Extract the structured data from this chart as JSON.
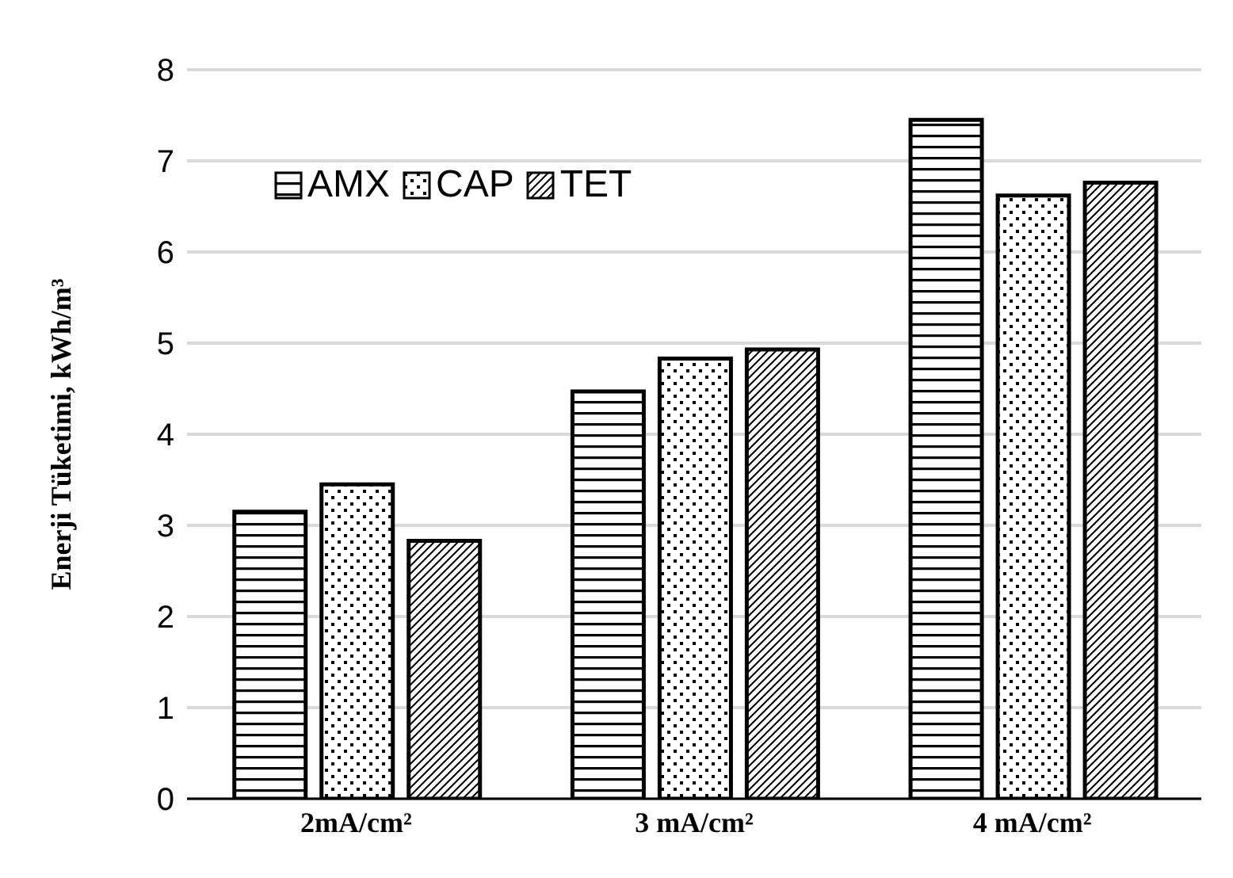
{
  "chart_data": {
    "type": "bar",
    "ylabel": "Enerji Tüketimi,  kWh/m³",
    "categories": [
      "2mA/cm²",
      "3 mA/cm²",
      "4 mA/cm²"
    ],
    "series": [
      {
        "name": "AMX",
        "color": "#000000",
        "values": [
          3.15,
          4.47,
          7.45
        ]
      },
      {
        "name": "CAP",
        "color": "#000000",
        "values": [
          3.45,
          4.83,
          6.62
        ]
      },
      {
        "name": "TET",
        "color": "#000000",
        "values": [
          2.83,
          4.93,
          6.76
        ]
      }
    ],
    "ylim": [
      0,
      8
    ],
    "yticks": [
      0,
      1,
      2,
      3,
      4,
      5,
      6,
      7,
      8
    ],
    "grid": "y",
    "legend": "top left"
  }
}
